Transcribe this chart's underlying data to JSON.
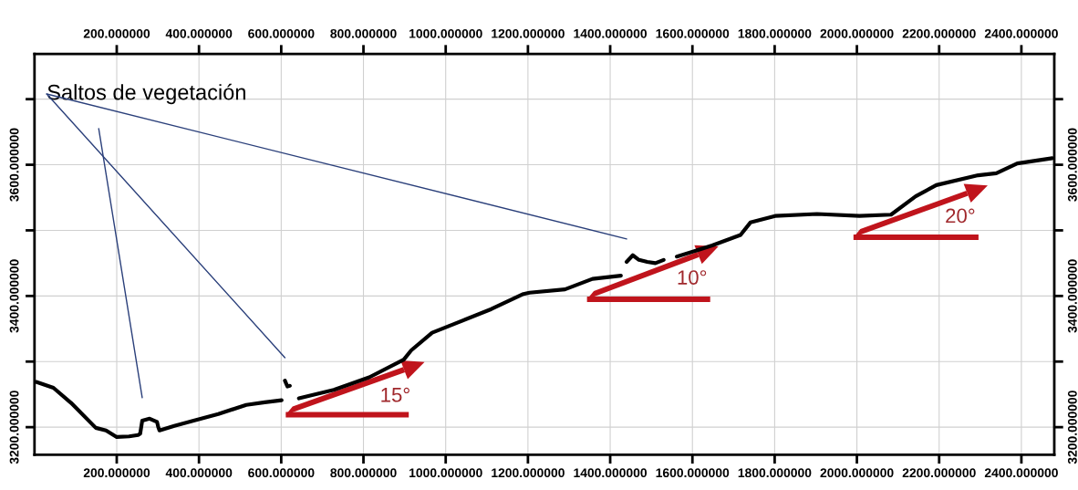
{
  "chart_data": {
    "type": "line",
    "x": [
      4,
      46,
      89,
      149,
      174,
      200,
      230,
      252,
      257,
      262,
      280,
      298,
      301,
      304,
      340,
      387,
      447,
      515,
      560,
      601,
      604,
      609,
      615,
      621,
      625,
      643,
      728,
      814,
      898,
      916,
      967,
      1027,
      1111,
      1189,
      1204,
      1290,
      1357,
      1426,
      1432,
      1440,
      1455,
      1470,
      1490,
      1510,
      1530,
      1545,
      1562,
      1648,
      1717,
      1741,
      1801,
      1903,
      2006,
      2083,
      2143,
      2193,
      2295,
      2339,
      2390,
      2475
    ],
    "series": [
      {
        "color": "#000000",
        "values": [
          3269,
          3260,
          3237,
          3199,
          3195,
          3185,
          3186,
          3188,
          3190,
          3210,
          3213,
          3208,
          3200,
          3195,
          3202,
          3210,
          3220,
          3234,
          3238,
          3241,
          null,
          3271,
          3262,
          3263,
          null,
          3244,
          3257,
          3276,
          3303,
          3317,
          3344,
          3359,
          3380,
          3403,
          3405,
          3410,
          3426,
          3431,
          null,
          3452,
          3462,
          3455,
          3452,
          3450,
          3455,
          null,
          3460,
          3477,
          3493,
          3512,
          3522,
          3525,
          3522,
          3524,
          3552,
          3569,
          3584,
          3587,
          3602,
          3610
        ]
      }
    ],
    "xlim": [
      0,
      2480
    ],
    "ylim": [
      3158,
      3769
    ],
    "xticks": [
      {
        "value": 200,
        "label": "200.000000"
      },
      {
        "value": 400,
        "label": "400.000000"
      },
      {
        "value": 600,
        "label": "600.000000"
      },
      {
        "value": 800,
        "label": "800.000000"
      },
      {
        "value": 1000,
        "label": "1000.000000"
      },
      {
        "value": 1200,
        "label": "1200.000000"
      },
      {
        "value": 1400,
        "label": "1400.000000"
      },
      {
        "value": 1600,
        "label": "1600.000000"
      },
      {
        "value": 1800,
        "label": "1800.000000"
      },
      {
        "value": 2000,
        "label": "2000.000000"
      },
      {
        "value": 2200,
        "label": "2200.000000"
      },
      {
        "value": 2400,
        "label": "2400.000000"
      }
    ],
    "x2lim": [
      0,
      2480
    ],
    "x2ticks": [
      {
        "value": 200,
        "label": "200.000000"
      },
      {
        "value": 400,
        "label": "400.000000"
      },
      {
        "value": 600,
        "label": "600.000000"
      },
      {
        "value": 800,
        "label": "800.000000"
      },
      {
        "value": 1000,
        "label": "1000.000000"
      },
      {
        "value": 1200,
        "label": "1200.000000"
      },
      {
        "value": 1400,
        "label": "1400.000000"
      },
      {
        "value": 1600,
        "label": "1600.000000"
      },
      {
        "value": 1800,
        "label": "1800.000000"
      },
      {
        "value": 2000,
        "label": "2000.000000"
      },
      {
        "value": 2200,
        "label": "2200.000000"
      },
      {
        "value": 2400,
        "label": "2400.000000"
      }
    ],
    "yticks": [
      {
        "value": 3200,
        "label": "3200.000000"
      },
      {
        "value": 3300,
        "label": null
      },
      {
        "value": 3400,
        "label": "3400.000000"
      },
      {
        "value": 3500,
        "label": null
      },
      {
        "value": 3600,
        "label": "3600.000000"
      },
      {
        "value": 3700,
        "label": null
      }
    ],
    "y2lim": [
      3158,
      3769
    ],
    "y2ticks": [
      {
        "value": 3200,
        "label": "3200.000000"
      },
      {
        "value": 3300,
        "label": null
      },
      {
        "value": 3400,
        "label": "3400.000000"
      },
      {
        "value": 3500,
        "label": null
      },
      {
        "value": 3600,
        "label": "3600.000000"
      },
      {
        "value": 3700,
        "label": null
      }
    ],
    "grid": true,
    "annotations": [
      "Saltos de vegetación",
      "15°",
      "10°",
      "20°"
    ]
  }
}
